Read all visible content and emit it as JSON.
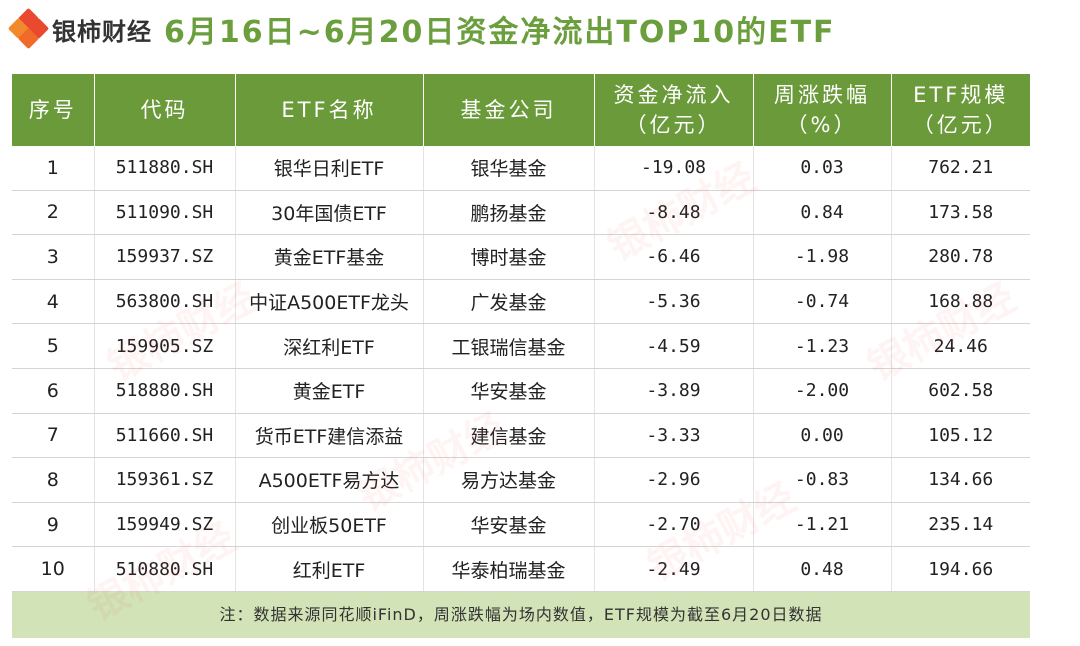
{
  "header": {
    "logo_text": "银柿财经",
    "title": "6月16日~6月20日资金净流出TOP10的ETF"
  },
  "table": {
    "headers": [
      {
        "line1": "序号",
        "line2": ""
      },
      {
        "line1": "代码",
        "line2": ""
      },
      {
        "line1": "ETF名称",
        "line2": ""
      },
      {
        "line1": "基金公司",
        "line2": ""
      },
      {
        "line1": "资金净流入",
        "line2": "（亿元）"
      },
      {
        "line1": "周涨跌幅",
        "line2": "（%）"
      },
      {
        "line1": "ETF规模",
        "line2": "（亿元）"
      }
    ],
    "rows": [
      [
        "1",
        "511880.SH",
        "银华日利ETF",
        "银华基金",
        "-19.08",
        "0.03",
        "762.21"
      ],
      [
        "2",
        "511090.SH",
        "30年国债ETF",
        "鹏扬基金",
        "-8.48",
        "0.84",
        "173.58"
      ],
      [
        "3",
        "159937.SZ",
        "黄金ETF基金",
        "博时基金",
        "-6.46",
        "-1.98",
        "280.78"
      ],
      [
        "4",
        "563800.SH",
        "中证A500ETF龙头",
        "广发基金",
        "-5.36",
        "-0.74",
        "168.88"
      ],
      [
        "5",
        "159905.SZ",
        "深红利ETF",
        "工银瑞信基金",
        "-4.59",
        "-1.23",
        "24.46"
      ],
      [
        "6",
        "518880.SH",
        "黄金ETF",
        "华安基金",
        "-3.89",
        "-2.00",
        "602.58"
      ],
      [
        "7",
        "511660.SH",
        "货币ETF建信添益",
        "建信基金",
        "-3.33",
        "0.00",
        "105.12"
      ],
      [
        "8",
        "159361.SZ",
        "A500ETF易方达",
        "易方达基金",
        "-2.96",
        "-0.83",
        "134.66"
      ],
      [
        "9",
        "159949.SZ",
        "创业板50ETF",
        "华安基金",
        "-2.70",
        "-1.21",
        "235.14"
      ],
      [
        "10",
        "510880.SH",
        "红利ETF",
        "华泰柏瑞基金",
        "-2.49",
        "0.48",
        "194.66"
      ]
    ],
    "note": "注：数据来源同花顺iFinD，周涨跌幅为场内数值，ETF规模为截至6月20日数据"
  },
  "colors": {
    "header_bg": "#6a9a3a",
    "title_green": "#6b9e3c",
    "note_bg": "#d2e3b7",
    "logo_red": "#e8492f"
  }
}
